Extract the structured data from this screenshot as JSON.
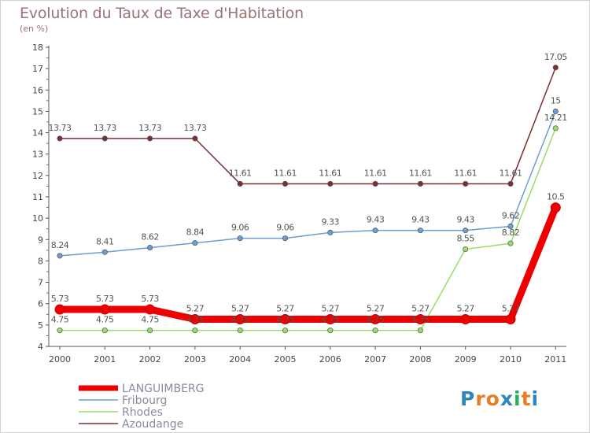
{
  "chart_data": {
    "type": "line",
    "title": "Evolution du Taux de Taxe d'Habitation",
    "subtitle": "(en %)",
    "x": [
      "2000",
      "2001",
      "2002",
      "2003",
      "2004",
      "2005",
      "2006",
      "2007",
      "2008",
      "2009",
      "2010",
      "2011"
    ],
    "ylim": [
      4,
      18
    ],
    "yticks": [
      4,
      5,
      6,
      7,
      8,
      9,
      10,
      11,
      12,
      13,
      14,
      15,
      16,
      17,
      18
    ],
    "grid": false,
    "legend_position": "bottom-left",
    "series": [
      {
        "name": "LANGUIMBERG",
        "color": "#ee0000",
        "values": [
          5.73,
          5.73,
          5.73,
          5.27,
          5.27,
          5.27,
          5.27,
          5.27,
          5.27,
          5.27,
          5.27,
          10.5
        ],
        "labels": [
          "5.73",
          "5.73",
          "5.73",
          "5.27",
          "5.27",
          "5.27",
          "5.27",
          "5.27",
          "5.27",
          "5.27",
          "5.27",
          "10.5"
        ]
      },
      {
        "name": "Fribourg",
        "color": "#6a9fd4",
        "values": [
          8.24,
          8.41,
          8.62,
          8.84,
          9.06,
          9.06,
          9.33,
          9.43,
          9.43,
          9.43,
          9.62,
          15
        ],
        "labels": [
          "8.24",
          "8.41",
          "8.62",
          "8.84",
          "9.06",
          "9.06",
          "9.33",
          "9.43",
          "9.43",
          "9.43",
          "9.62",
          "15"
        ]
      },
      {
        "name": "Rhodes",
        "color": "#99dd66",
        "values": [
          4.75,
          4.75,
          4.75,
          4.75,
          4.75,
          4.75,
          4.75,
          4.75,
          4.75,
          8.55,
          8.82,
          14.21
        ],
        "labels": [
          "4.75",
          "4.75",
          "4.75",
          "4.75",
          "4.75",
          "4.75",
          "4.75",
          "4.75",
          "4.75",
          "8.55",
          "8.82",
          "14.21"
        ]
      },
      {
        "name": "Azoudange",
        "color": "#7a3030",
        "values": [
          13.73,
          13.73,
          13.73,
          13.73,
          11.61,
          11.61,
          11.61,
          11.61,
          11.61,
          11.61,
          11.61,
          17.05
        ],
        "labels": [
          "13.73",
          "13.73",
          "13.73",
          "13.73",
          "11.61",
          "11.61",
          "11.61",
          "11.61",
          "11.61",
          "11.61",
          "11.61",
          "17.05"
        ]
      }
    ]
  },
  "logo": {
    "text": "Proxiti",
    "letters": [
      "P",
      "r",
      "o",
      "x",
      "i",
      "t",
      "i"
    ],
    "colors": [
      "#2e86c1",
      "#e67e22",
      "#e67e22",
      "#2e86c1",
      "#27ae60",
      "#e67e22",
      "#2e86c1"
    ]
  }
}
